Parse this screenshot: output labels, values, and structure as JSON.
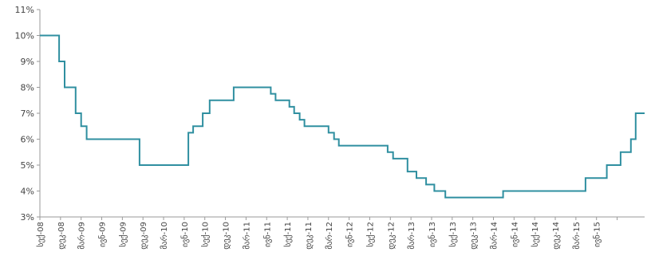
{
  "chart_data": {
    "type": "line",
    "title": "",
    "xlabel": "",
    "ylabel": "",
    "ylim": [
      3,
      11
    ],
    "yticks": [
      "3%",
      "4%",
      "5%",
      "6%",
      "7%",
      "8%",
      "9%",
      "10%",
      "11%"
    ],
    "grid": false,
    "legend": "none",
    "line_color": "#2f8fa0",
    "x_ticks": [
      {
        "i": 0,
        "label": "სექ-08"
      },
      {
        "i": 3,
        "label": "დეკ-08"
      },
      {
        "i": 6,
        "label": "მარ-09"
      },
      {
        "i": 9,
        "label": "ივნ-09"
      },
      {
        "i": 12,
        "label": "სექ-09"
      },
      {
        "i": 15,
        "label": "დეკ-09"
      },
      {
        "i": 18,
        "label": "მარ-10"
      },
      {
        "i": 21,
        "label": "ივნ-10"
      },
      {
        "i": 24,
        "label": "სექ-10"
      },
      {
        "i": 27,
        "label": "დეკ-10"
      },
      {
        "i": 30,
        "label": "მარ-11"
      },
      {
        "i": 33,
        "label": "ივნ-11"
      },
      {
        "i": 36,
        "label": "სექ-11"
      },
      {
        "i": 39,
        "label": "დეკ-11"
      },
      {
        "i": 42,
        "label": "მარ-12"
      },
      {
        "i": 45,
        "label": "ივნ-12"
      },
      {
        "i": 48,
        "label": "სექ-12"
      },
      {
        "i": 51,
        "label": "დეკ-12"
      },
      {
        "i": 54,
        "label": "მარ-13"
      },
      {
        "i": 57,
        "label": "ივნ-13"
      },
      {
        "i": 60,
        "label": "სექ-13"
      },
      {
        "i": 63,
        "label": "დეკ-13"
      },
      {
        "i": 66,
        "label": "მარ-14"
      },
      {
        "i": 69,
        "label": "ივნ-14"
      },
      {
        "i": 72,
        "label": "სექ-14"
      },
      {
        "i": 75,
        "label": "დეკ-14"
      },
      {
        "i": 78,
        "label": "მარ-15"
      },
      {
        "i": 81,
        "label": "ივნ-15"
      }
    ],
    "x_end_index": 84,
    "series": [
      {
        "values": [
          [
            0,
            10.0
          ],
          [
            2.8,
            10.0
          ],
          [
            2.8,
            9.0
          ],
          [
            3.6,
            9.0
          ],
          [
            3.6,
            8.0
          ],
          [
            5.2,
            8.0
          ],
          [
            5.2,
            7.0
          ],
          [
            6.0,
            7.0
          ],
          [
            6.0,
            6.5
          ],
          [
            6.8,
            6.5
          ],
          [
            6.8,
            6.0
          ],
          [
            14.5,
            6.0
          ],
          [
            14.5,
            5.0
          ],
          [
            21.6,
            5.0
          ],
          [
            21.6,
            6.25
          ],
          [
            22.3,
            6.25
          ],
          [
            22.3,
            6.5
          ],
          [
            23.7,
            6.5
          ],
          [
            23.7,
            7.0
          ],
          [
            24.7,
            7.0
          ],
          [
            24.7,
            7.5
          ],
          [
            28.2,
            7.5
          ],
          [
            28.2,
            8.0
          ],
          [
            33.6,
            8.0
          ],
          [
            33.6,
            7.75
          ],
          [
            34.3,
            7.75
          ],
          [
            34.3,
            7.5
          ],
          [
            36.3,
            7.5
          ],
          [
            36.3,
            7.25
          ],
          [
            37.0,
            7.25
          ],
          [
            37.0,
            7.0
          ],
          [
            37.8,
            7.0
          ],
          [
            37.8,
            6.75
          ],
          [
            38.5,
            6.75
          ],
          [
            38.5,
            6.5
          ],
          [
            42.0,
            6.5
          ],
          [
            42.0,
            6.25
          ],
          [
            42.8,
            6.25
          ],
          [
            42.8,
            6.0
          ],
          [
            43.5,
            6.0
          ],
          [
            43.5,
            5.75
          ],
          [
            50.6,
            5.75
          ],
          [
            50.6,
            5.5
          ],
          [
            51.4,
            5.5
          ],
          [
            51.4,
            5.25
          ],
          [
            53.5,
            5.25
          ],
          [
            53.5,
            4.75
          ],
          [
            54.8,
            4.75
          ],
          [
            54.8,
            4.5
          ],
          [
            56.2,
            4.5
          ],
          [
            56.2,
            4.25
          ],
          [
            57.4,
            4.25
          ],
          [
            57.4,
            4.0
          ],
          [
            59.0,
            4.0
          ],
          [
            59.0,
            3.75
          ],
          [
            67.4,
            3.75
          ],
          [
            67.4,
            4.0
          ],
          [
            79.4,
            4.0
          ],
          [
            79.4,
            4.5
          ],
          [
            82.5,
            4.5
          ],
          [
            82.5,
            5.0
          ],
          [
            84.5,
            5.0
          ],
          [
            84.5,
            5.5
          ],
          [
            86.0,
            5.5
          ],
          [
            86.0,
            6.0
          ],
          [
            86.7,
            6.0
          ],
          [
            86.7,
            7.0
          ],
          [
            88.0,
            7.0
          ]
        ]
      }
    ]
  }
}
